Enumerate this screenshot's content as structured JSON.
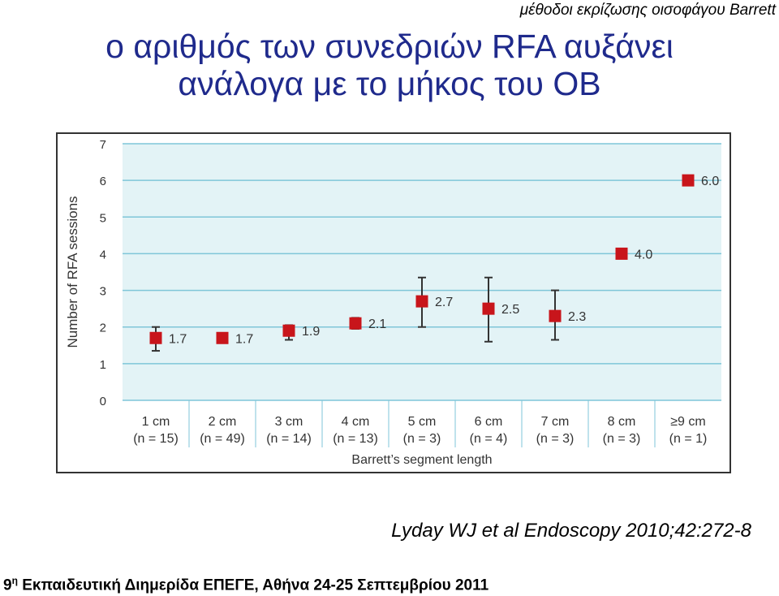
{
  "header": {
    "topic": "μέθοδοι εκρίζωσης οισοφάγου Barrett"
  },
  "title": {
    "line1": "ο αριθμός των συνεδριών RFA αυξάνει",
    "line2": "ανάλογα με το μήκος του OB"
  },
  "citation": "Lyday WJ et al Endoscopy 2010;42:272-8",
  "footer": {
    "number": "9",
    "superscript": "η",
    "text": "Εκπαιδευτική Διημερίδα ΕΠΕΓΕ, Αθήνα 24-25 Σεπτεμβρίου 2011"
  },
  "colors": {
    "plot_bg": "#e3f3f6",
    "grid": "#7fc6d8",
    "marker": "#c8151b",
    "axis_text": "#333333",
    "title": "#1f2a8c"
  },
  "chart_data": {
    "type": "scatter",
    "xlabel": "Barrett’s segment length",
    "ylabel": "Number of RFA sessions",
    "ylim": [
      0,
      7
    ],
    "yticks": [
      "0",
      "1",
      "2",
      "3",
      "4",
      "5",
      "6",
      "7"
    ],
    "grid": true,
    "categories": [
      {
        "label": "1 cm",
        "n": "(n = 15)"
      },
      {
        "label": "2 cm",
        "n": "(n = 49)"
      },
      {
        "label": "3 cm",
        "n": "(n = 14)"
      },
      {
        "label": "4 cm",
        "n": "(n = 13)"
      },
      {
        "label": "5 cm",
        "n": "(n = 3)"
      },
      {
        "label": "6 cm",
        "n": "(n = 4)"
      },
      {
        "label": "7 cm",
        "n": "(n = 3)"
      },
      {
        "label": "8 cm",
        "n": "(n = 3)"
      },
      {
        "label": "≥9 cm",
        "n": "(n = 1)"
      }
    ],
    "points": [
      {
        "value": 1.7,
        "label": "1.7",
        "err_low": 1.35,
        "err_high": 2.0
      },
      {
        "value": 1.7,
        "label": "1.7",
        "err_low": null,
        "err_high": null
      },
      {
        "value": 1.9,
        "label": "1.9",
        "err_low": 1.65,
        "err_high": 2.05
      },
      {
        "value": 2.1,
        "label": "2.1",
        "err_low": 1.95,
        "err_high": 2.25
      },
      {
        "value": 2.7,
        "label": "2.7",
        "err_low": 2.0,
        "err_high": 3.35
      },
      {
        "value": 2.5,
        "label": "2.5",
        "err_low": 1.6,
        "err_high": 3.35
      },
      {
        "value": 2.3,
        "label": "2.3",
        "err_low": 1.65,
        "err_high": 3.0
      },
      {
        "value": 4.0,
        "label": "4.0",
        "err_low": null,
        "err_high": null
      },
      {
        "value": 6.0,
        "label": "6.0",
        "err_low": null,
        "err_high": null
      }
    ]
  }
}
